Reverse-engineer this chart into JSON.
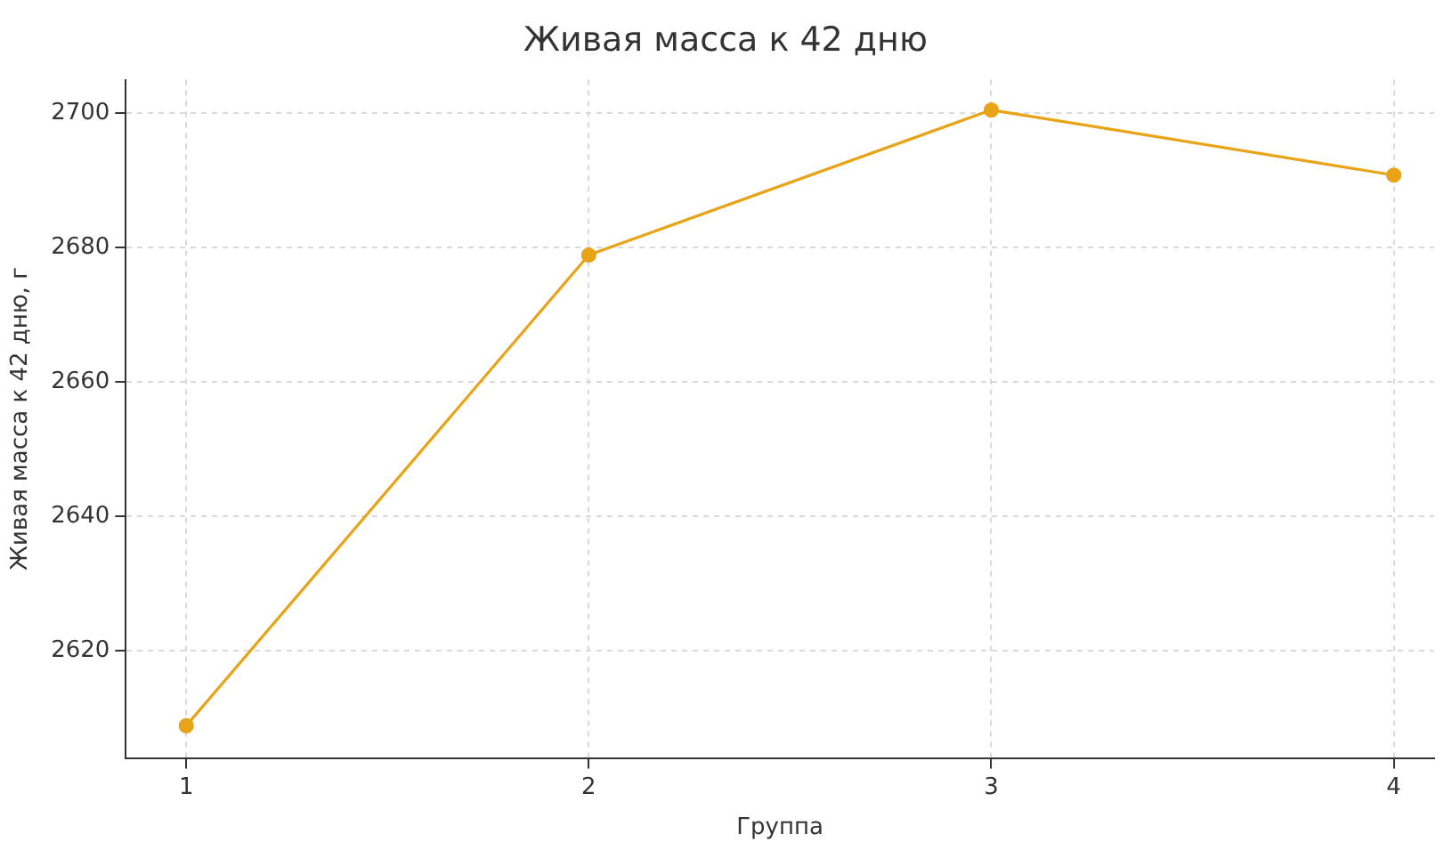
{
  "chart_data": {
    "type": "line",
    "title": "Живая масса к 42 дню",
    "xlabel": "Группа",
    "ylabel": "Живая масса к 42 дню, г",
    "x": [
      1,
      2,
      3,
      4
    ],
    "series": [
      {
        "color": "#e8a317",
        "values": [
          2608.8,
          2678.9,
          2700.5,
          2690.8
        ]
      }
    ],
    "xlim": [
      0.85,
      4.1
    ],
    "xticks": [
      1,
      2,
      3,
      4
    ],
    "ylim": [
      2604,
      2705
    ],
    "yticks": [
      2620,
      2640,
      2660,
      2680,
      2700
    ],
    "grid": true,
    "marker": "circle",
    "line_style": "solid",
    "legend": false
  }
}
